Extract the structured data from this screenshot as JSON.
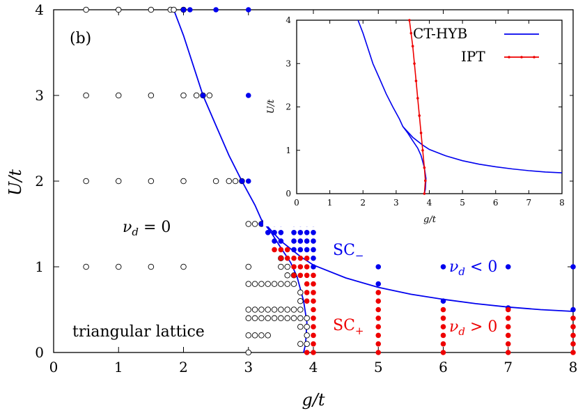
{
  "chart_data": [
    {
      "type": "scatter",
      "xlabel": "g/t",
      "ylabel": "U/t",
      "xlim": [
        0,
        8
      ],
      "ylim": [
        0,
        4
      ],
      "xticks": [
        "0",
        "1",
        "2",
        "3",
        "4",
        "5",
        "6",
        "7",
        "8"
      ],
      "yticks": [
        "0",
        "1",
        "2",
        "3",
        "4"
      ],
      "grid": false,
      "colors": {
        "blue": "#0000ee",
        "red": "#ee0000",
        "black": "#000000"
      },
      "annotations": {
        "panel": "(b)",
        "nu_zero": "ν_d = 0",
        "sc_minus": "SC−",
        "sc_plus": "SC+",
        "nu_neg": "ν_d < 0",
        "nu_pos": "ν_d > 0",
        "lattice": "triangular lattice"
      },
      "series": [
        {
          "name": "open",
          "marker": "open-circle",
          "points": [
            [
              0.5,
              4
            ],
            [
              1,
              4
            ],
            [
              1.5,
              4
            ],
            [
              2,
              4
            ],
            [
              1.8,
              4
            ],
            [
              1.85,
              4
            ],
            [
              0.5,
              3
            ],
            [
              1,
              3
            ],
            [
              1.5,
              3
            ],
            [
              2,
              3
            ],
            [
              2.2,
              3
            ],
            [
              2.3,
              3
            ],
            [
              2.4,
              3
            ],
            [
              0.5,
              2
            ],
            [
              1,
              2
            ],
            [
              1.5,
              2
            ],
            [
              2,
              2
            ],
            [
              2.5,
              2
            ],
            [
              2.7,
              2
            ],
            [
              2.8,
              2
            ],
            [
              2.9,
              2
            ],
            [
              3,
              1.5
            ],
            [
              3.1,
              1.5
            ],
            [
              3.2,
              1.5
            ],
            [
              0.5,
              1
            ],
            [
              1,
              1
            ],
            [
              1.5,
              1
            ],
            [
              2,
              1
            ],
            [
              3,
              1
            ],
            [
              3.5,
              1.1
            ],
            [
              3.5,
              1
            ],
            [
              3.6,
              1
            ],
            [
              3.6,
              0.9
            ],
            [
              3.7,
              0.9
            ],
            [
              3,
              0.8
            ],
            [
              3.1,
              0.8
            ],
            [
              3.2,
              0.8
            ],
            [
              3.3,
              0.8
            ],
            [
              3.4,
              0.8
            ],
            [
              3.5,
              0.8
            ],
            [
              3.6,
              0.8
            ],
            [
              3.7,
              0.8
            ],
            [
              3.8,
              0.7
            ],
            [
              3.8,
              0.6
            ],
            [
              3,
              0.5
            ],
            [
              3.1,
              0.5
            ],
            [
              3.2,
              0.5
            ],
            [
              3.3,
              0.5
            ],
            [
              3.4,
              0.5
            ],
            [
              3.5,
              0.5
            ],
            [
              3.6,
              0.5
            ],
            [
              3.7,
              0.5
            ],
            [
              3.8,
              0.5
            ],
            [
              3,
              0.4
            ],
            [
              3.1,
              0.4
            ],
            [
              3.2,
              0.4
            ],
            [
              3.3,
              0.4
            ],
            [
              3.4,
              0.4
            ],
            [
              3.5,
              0.4
            ],
            [
              3.6,
              0.4
            ],
            [
              3.7,
              0.4
            ],
            [
              3.8,
              0.4
            ],
            [
              3.9,
              0.4
            ],
            [
              3.8,
              0.3
            ],
            [
              3.9,
              0.3
            ],
            [
              3.9,
              0.2
            ],
            [
              3,
              0.2
            ],
            [
              3.1,
              0.2
            ],
            [
              3.2,
              0.2
            ],
            [
              3.3,
              0.2
            ],
            [
              3.8,
              0.1
            ],
            [
              3.9,
              0.1
            ],
            [
              3,
              0
            ]
          ]
        },
        {
          "name": "SC−",
          "marker": "filled-blue",
          "points": [
            [
              2,
              4
            ],
            [
              2.1,
              4
            ],
            [
              2.5,
              4
            ],
            [
              3,
              4
            ],
            [
              2.3,
              3
            ],
            [
              3,
              3
            ],
            [
              2.9,
              2
            ],
            [
              3,
              2
            ],
            [
              3.2,
              1.5
            ],
            [
              3.3,
              1.5
            ],
            [
              3.4,
              1.5
            ],
            [
              3.5,
              1.5
            ],
            [
              3.7,
              1.5
            ],
            [
              3.8,
              1.5
            ],
            [
              3.9,
              1.5
            ],
            [
              4,
              1.5
            ],
            [
              3.3,
              1.4
            ],
            [
              3.4,
              1.4
            ],
            [
              3.5,
              1.4
            ],
            [
              3.7,
              1.4
            ],
            [
              3.8,
              1.4
            ],
            [
              3.9,
              1.4
            ],
            [
              4,
              1.4
            ],
            [
              3.4,
              1.3
            ],
            [
              3.5,
              1.3
            ],
            [
              3.7,
              1.3
            ],
            [
              3.8,
              1.3
            ],
            [
              3.9,
              1.3
            ],
            [
              4,
              1.3
            ],
            [
              3.7,
              1.2
            ],
            [
              3.8,
              1.2
            ],
            [
              3.9,
              1.2
            ],
            [
              4,
              1.2
            ],
            [
              4,
              1.1
            ],
            [
              4,
              1
            ],
            [
              5,
              1
            ],
            [
              5,
              0.8
            ],
            [
              6,
              1
            ],
            [
              6,
              0.6
            ],
            [
              7,
              1
            ],
            [
              7,
              0.52
            ],
            [
              8,
              1
            ],
            [
              8,
              0.5
            ]
          ]
        },
        {
          "name": "SC+",
          "marker": "filled-red",
          "points": [
            [
              3.4,
              1.2
            ],
            [
              3.5,
              1.2
            ],
            [
              3.6,
              1.2
            ],
            [
              3.5,
              1.1
            ],
            [
              3.6,
              1.1
            ],
            [
              3.7,
              1.1
            ],
            [
              3.8,
              1.1
            ],
            [
              3.9,
              1.1
            ],
            [
              3.7,
              1
            ],
            [
              3.8,
              1
            ],
            [
              3.9,
              1
            ],
            [
              3.7,
              0.9
            ],
            [
              3.8,
              0.9
            ],
            [
              3.9,
              0.9
            ],
            [
              4,
              0.9
            ],
            [
              3.9,
              0.8
            ],
            [
              4,
              0.8
            ],
            [
              3.9,
              0.7
            ],
            [
              4,
              0.7
            ],
            [
              3.9,
              0.6
            ],
            [
              4,
              0.6
            ],
            [
              4,
              0.5
            ],
            [
              4,
              0.4
            ],
            [
              4,
              0.3
            ],
            [
              4,
              0.2
            ],
            [
              4,
              0.1
            ],
            [
              3.9,
              0
            ],
            [
              4,
              0
            ],
            [
              5,
              0.7
            ],
            [
              5,
              0.6
            ],
            [
              5,
              0.5
            ],
            [
              5,
              0.4
            ],
            [
              5,
              0.3
            ],
            [
              5,
              0.2
            ],
            [
              5,
              0.1
            ],
            [
              5,
              0
            ],
            [
              6,
              0.5
            ],
            [
              6,
              0.4
            ],
            [
              6,
              0.3
            ],
            [
              6,
              0.2
            ],
            [
              6,
              0.1
            ],
            [
              6,
              0
            ],
            [
              7,
              0.5
            ],
            [
              7,
              0.4
            ],
            [
              7,
              0.3
            ],
            [
              7,
              0.2
            ],
            [
              7,
              0.1
            ],
            [
              7,
              0
            ],
            [
              8,
              0.4
            ],
            [
              8,
              0.3
            ],
            [
              8,
              0.2
            ],
            [
              8,
              0.1
            ],
            [
              8,
              0
            ]
          ]
        },
        {
          "name": "boundary",
          "marker": "line-blue",
          "points": [
            [
              1.85,
              4
            ],
            [
              2,
              3.7
            ],
            [
              2.3,
              3
            ],
            [
              2.5,
              2.65
            ],
            [
              2.7,
              2.3
            ],
            [
              2.9,
              2
            ],
            [
              3.1,
              1.72
            ],
            [
              3.2,
              1.55
            ],
            [
              3.35,
              1.4
            ],
            [
              3.5,
              1.22
            ],
            [
              3.65,
              1.05
            ],
            [
              3.75,
              0.88
            ],
            [
              3.85,
              0.6
            ],
            [
              3.9,
              0.35
            ],
            [
              3.88,
              0.1
            ],
            [
              3.85,
              0
            ]
          ]
        },
        {
          "name": "boundary-upper",
          "marker": "line-blue",
          "points": [
            [
              3.2,
              1.55
            ],
            [
              3.5,
              1.3
            ],
            [
              3.8,
              1.12
            ],
            [
              4,
              1.02
            ],
            [
              4.5,
              0.87
            ],
            [
              5,
              0.76
            ],
            [
              5.5,
              0.68
            ],
            [
              6,
              0.62
            ],
            [
              6.5,
              0.57
            ],
            [
              7,
              0.53
            ],
            [
              7.5,
              0.5
            ],
            [
              8,
              0.48
            ]
          ]
        }
      ]
    },
    {
      "type": "line",
      "xlabel": "g/t",
      "ylabel": "U/t",
      "xlim": [
        0,
        8
      ],
      "ylim": [
        0,
        4
      ],
      "xticks": [
        "0",
        "1",
        "2",
        "3",
        "4",
        "5",
        "6",
        "7",
        "8"
      ],
      "yticks": [
        "0",
        "1",
        "2",
        "3",
        "4"
      ],
      "legend_position": "top-right",
      "series": [
        {
          "name": "CT-HYB",
          "color": "#0000ee",
          "points": [
            [
              1.85,
              4
            ],
            [
              2,
              3.7
            ],
            [
              2.3,
              3
            ],
            [
              2.5,
              2.65
            ],
            [
              2.7,
              2.3
            ],
            [
              2.9,
              2
            ],
            [
              3.1,
              1.72
            ],
            [
              3.2,
              1.55
            ],
            [
              3.35,
              1.4
            ],
            [
              3.5,
              1.22
            ],
            [
              3.65,
              1.05
            ],
            [
              3.75,
              0.88
            ],
            [
              3.85,
              0.6
            ],
            [
              3.9,
              0.35
            ],
            [
              3.88,
              0.1
            ],
            [
              3.85,
              0
            ]
          ]
        },
        {
          "name": "CT-HYB upper",
          "color": "#0000ee",
          "points": [
            [
              3.2,
              1.55
            ],
            [
              3.5,
              1.3
            ],
            [
              3.8,
              1.12
            ],
            [
              4,
              1.02
            ],
            [
              4.5,
              0.87
            ],
            [
              5,
              0.76
            ],
            [
              5.5,
              0.68
            ],
            [
              6,
              0.62
            ],
            [
              6.5,
              0.57
            ],
            [
              7,
              0.53
            ],
            [
              7.5,
              0.5
            ],
            [
              8,
              0.48
            ]
          ]
        },
        {
          "name": "IPT",
          "color": "#ee0000",
          "points": [
            [
              3.4,
              4
            ],
            [
              3.45,
              3.7
            ],
            [
              3.5,
              3.4
            ],
            [
              3.55,
              3.0
            ],
            [
              3.6,
              2.6
            ],
            [
              3.65,
              2.2
            ],
            [
              3.7,
              1.8
            ],
            [
              3.75,
              1.4
            ],
            [
              3.8,
              1.0
            ],
            [
              3.85,
              0.6
            ],
            [
              3.88,
              0.3
            ],
            [
              3.85,
              0
            ]
          ]
        }
      ]
    }
  ]
}
